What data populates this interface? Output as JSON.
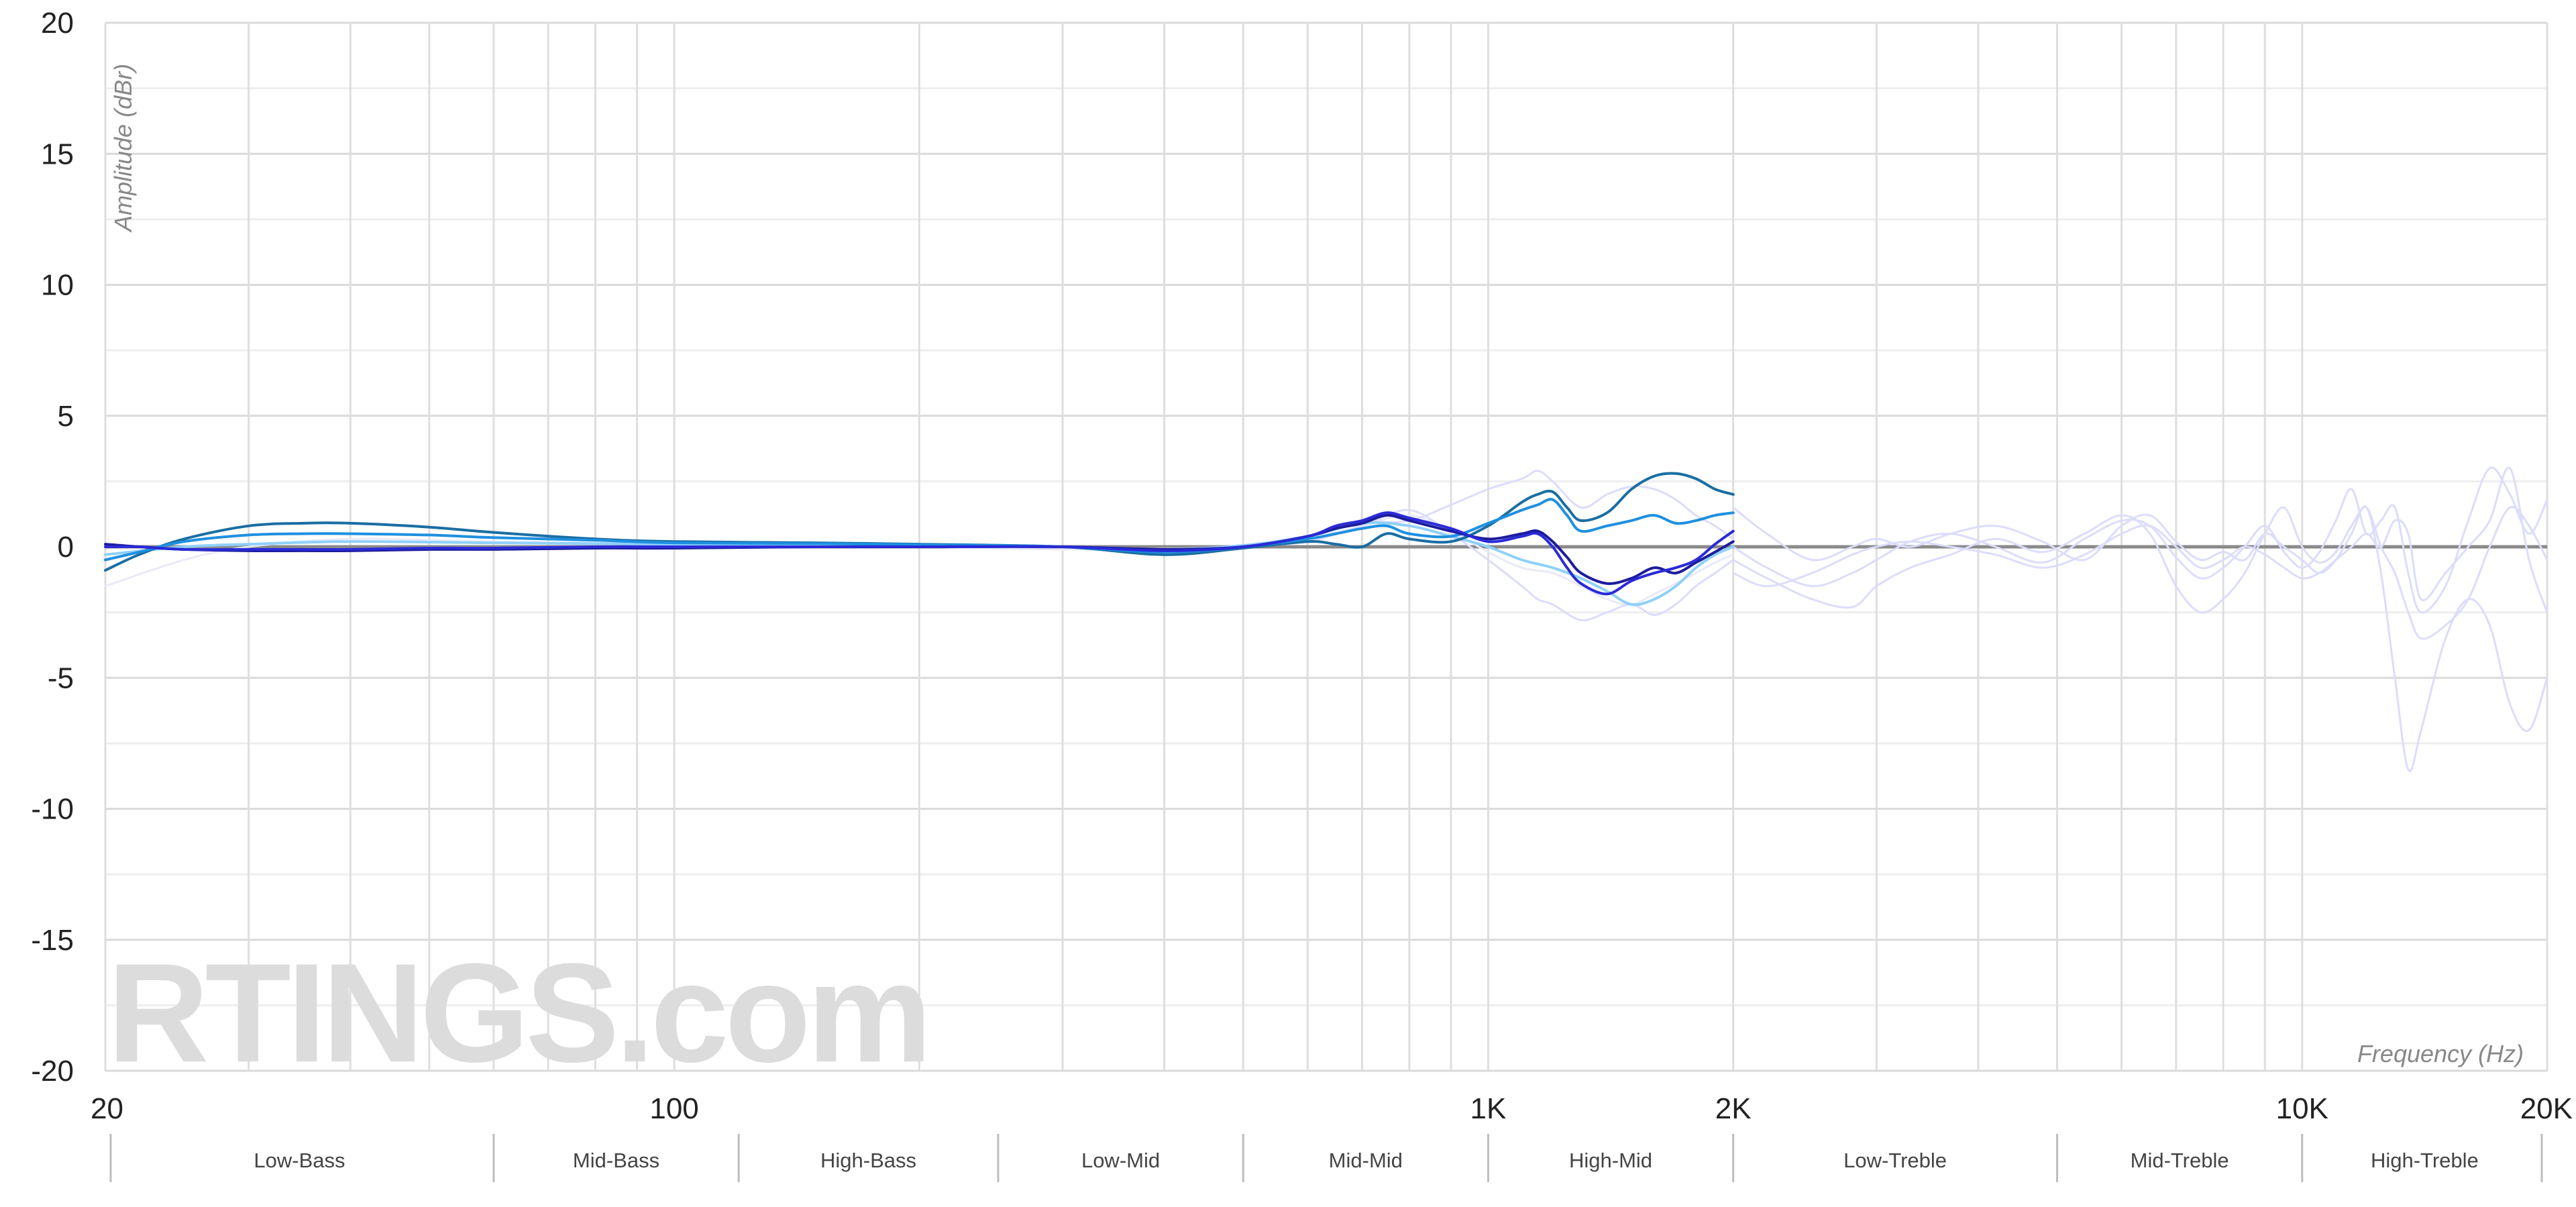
{
  "watermark": "RTINGS.com",
  "chart_data": {
    "type": "line",
    "xscale": "log",
    "xlim": [
      20,
      20000
    ],
    "ylim": [
      -20,
      20
    ],
    "ylabel": "Amplitude (dBr)",
    "xlabel": "Frequency (Hz)",
    "y_ticks": [
      20,
      15,
      10,
      5,
      0,
      -5,
      -10,
      -15,
      -20
    ],
    "x_tick_labels": [
      {
        "value": 20,
        "label": "20"
      },
      {
        "value": 100,
        "label": "100"
      },
      {
        "value": 1000,
        "label": "1K"
      },
      {
        "value": 2000,
        "label": "2K"
      },
      {
        "value": 10000,
        "label": "10K"
      },
      {
        "value": 20000,
        "label": "20K"
      }
    ],
    "grid": true,
    "zero_line_color": "#8a8a8a",
    "bands": [
      {
        "label": "Low-Bass",
        "from": 20,
        "to": 60
      },
      {
        "label": "Mid-Bass",
        "from": 60,
        "to": 120
      },
      {
        "label": "High-Bass",
        "from": 120,
        "to": 250
      },
      {
        "label": "Low-Mid",
        "from": 250,
        "to": 500
      },
      {
        "label": "Mid-Mid",
        "from": 500,
        "to": 1000
      },
      {
        "label": "High-Mid",
        "from": 1000,
        "to": 2000
      },
      {
        "label": "Low-Treble",
        "from": 2000,
        "to": 5000
      },
      {
        "label": "Mid-Treble",
        "from": 5000,
        "to": 10000
      },
      {
        "label": "High-Treble",
        "from": 10000,
        "to": 20000
      }
    ],
    "series": [
      {
        "color": "#dcdcfb",
        "width": 3,
        "x": [
          2000,
          2200,
          2500,
          2800,
          3000,
          3300,
          3700,
          4200,
          4800,
          5400,
          6000,
          6500,
          7000,
          7500,
          8000,
          8500,
          9000,
          9500,
          10000,
          10500,
          11000,
          11500,
          12000,
          12500,
          13000,
          13500,
          14000,
          15000,
          16000,
          17000,
          18000,
          19000,
          20000
        ],
        "y": [
          0,
          -0.8,
          -1.5,
          -1,
          -0.5,
          0.2,
          0.5,
          0,
          -0.6,
          0.3,
          1,
          0.8,
          -0.4,
          -1.2,
          -0.8,
          0,
          0.8,
          -0.2,
          -0.8,
          -0.2,
          1,
          2.2,
          0.5,
          1,
          1.5,
          -1,
          -2.5,
          -1.5,
          1,
          3,
          2,
          0.5,
          1.8
        ]
      },
      {
        "color": "#dcdcfb",
        "width": 3,
        "x": [
          2000,
          2200,
          2500,
          2800,
          3000,
          3300,
          3700,
          4200,
          4800,
          5400,
          6000,
          6500,
          7000,
          7500,
          8000,
          8500,
          9000,
          9500,
          10000,
          10500,
          11000,
          11500,
          12000,
          12500,
          13000,
          13500,
          14000,
          15000,
          16000,
          17000,
          18000,
          19000,
          20000
        ],
        "y": [
          -0.5,
          -1.2,
          -2,
          -2.3,
          -1.5,
          -0.8,
          -0.3,
          0.3,
          -0.2,
          0.5,
          1.2,
          0.5,
          -1.5,
          -2.5,
          -2,
          -1,
          0.5,
          1.5,
          0,
          -0.6,
          -0.2,
          0.8,
          1.5,
          0,
          -1,
          -2.5,
          -3.5,
          -3,
          -2,
          0,
          1.5,
          0.8,
          -0.5
        ]
      },
      {
        "color": "#dcdcfb",
        "width": 3,
        "x": [
          2000,
          2200,
          2500,
          2800,
          3000,
          3300,
          3700,
          4200,
          4800,
          5400,
          6000,
          6500,
          7000,
          7500,
          8000,
          8500,
          9000,
          9500,
          10000,
          10500,
          11000,
          11500,
          12000,
          12500,
          13000,
          13500,
          14000,
          15000,
          16000,
          17000,
          18000,
          19000,
          20000
        ],
        "y": [
          1.5,
          0.5,
          -0.5,
          0,
          0.3,
          0,
          0.5,
          0.8,
          0.2,
          -0.5,
          0.8,
          1.2,
          0.2,
          -0.5,
          -0.2,
          -0.5,
          0.5,
          0,
          -0.5,
          -1,
          -0.5,
          0.5,
          1.5,
          -1,
          -5,
          -8.5,
          -7,
          -3.5,
          -2,
          -3,
          -6,
          -7,
          -5
        ]
      },
      {
        "color": "#dcdcfb",
        "width": 3,
        "x": [
          2000,
          2200,
          2500,
          2800,
          3000,
          3300,
          3700,
          4200,
          4800,
          5400,
          6000,
          6500,
          7000,
          7500,
          8000,
          8500,
          9000,
          9500,
          10000,
          10500,
          11000,
          11500,
          12000,
          12500,
          13000,
          13500,
          14000,
          15000,
          16000,
          17000,
          18000,
          19000,
          20000
        ],
        "y": [
          -1,
          -1.5,
          -1,
          -0.3,
          0,
          0.2,
          0,
          -0.3,
          -0.8,
          -0.3,
          0.5,
          0.8,
          0,
          -0.8,
          -0.5,
          0,
          -0.3,
          -0.8,
          -1.2,
          -1,
          -0.5,
          0,
          0.5,
          0,
          1,
          0.5,
          -2,
          -1,
          0,
          1,
          3,
          -0.5,
          -2.5
        ]
      },
      {
        "color": "#e9e9f8",
        "width": 3,
        "x": [
          20,
          25,
          30,
          40,
          60,
          100,
          200,
          300,
          500,
          600,
          700,
          800,
          900,
          1000,
          1100,
          1200,
          1300,
          1400,
          1500,
          1600,
          1700,
          1800,
          1900,
          2000
        ],
        "y": [
          -1.5,
          -0.5,
          0,
          0.3,
          0.2,
          0.1,
          0,
          -0.1,
          0,
          0.3,
          0.8,
          1.2,
          0.6,
          -0.2,
          -0.8,
          -1,
          -1.5,
          -2,
          -2.2,
          -1.8,
          -1.4,
          -1,
          -0.6,
          -0.3
        ]
      },
      {
        "color": "#dcdcfb",
        "width": 3,
        "x": [
          500,
          600,
          700,
          800,
          900,
          1000,
          1100,
          1150,
          1200,
          1300,
          1400,
          1500,
          1600,
          1700,
          1800,
          1900,
          2000
        ],
        "y": [
          0,
          0.2,
          0.8,
          1.4,
          0.5,
          -0.5,
          -1.5,
          -2,
          -2.2,
          -2.8,
          -2.5,
          -2.2,
          -2.6,
          -2.2,
          -1.5,
          -1,
          -0.5
        ]
      },
      {
        "color": "#dcdcfb",
        "width": 3,
        "x": [
          500,
          600,
          700,
          800,
          900,
          1000,
          1100,
          1150,
          1200,
          1300,
          1400,
          1500,
          1600,
          1700,
          1800,
          1900,
          2000
        ],
        "y": [
          0,
          0.4,
          0.9,
          1,
          1.6,
          2.2,
          2.6,
          2.9,
          2.5,
          1.5,
          2,
          2.3,
          2.2,
          1.8,
          1.2,
          0.8,
          0.3
        ]
      },
      {
        "color": "#8fd0fa",
        "width": 4,
        "x": [
          20,
          25,
          30,
          40,
          60,
          100,
          200,
          300,
          400,
          500,
          600,
          700,
          800,
          900,
          1000,
          1100,
          1200,
          1300,
          1400,
          1500,
          1600,
          1700,
          1800,
          1900,
          2000
        ],
        "y": [
          -0.3,
          0,
          0.1,
          0.2,
          0.15,
          0.1,
          0.05,
          0,
          -0.1,
          0.05,
          0.4,
          0.9,
          0.8,
          0.4,
          0,
          -0.5,
          -0.8,
          -1.2,
          -1.7,
          -2.2,
          -2,
          -1.5,
          -0.8,
          -0.3,
          0
        ]
      },
      {
        "color": "#1a6ea3",
        "width": 4,
        "x": [
          20,
          22,
          25,
          30,
          35,
          40,
          50,
          60,
          80,
          100,
          150,
          200,
          300,
          400,
          500,
          600,
          650,
          700,
          750,
          800,
          900,
          1000,
          1100,
          1150,
          1200,
          1250,
          1300,
          1400,
          1500,
          1600,
          1700,
          1800,
          1900,
          2000
        ],
        "y": [
          -0.9,
          -0.3,
          0.3,
          0.8,
          0.9,
          0.9,
          0.75,
          0.55,
          0.3,
          0.2,
          0.15,
          0.1,
          0,
          -0.3,
          -0.05,
          0.2,
          0.1,
          0,
          0.5,
          0.3,
          0.2,
          0.8,
          1.7,
          2,
          2.1,
          1.5,
          1,
          1.3,
          2.2,
          2.7,
          2.8,
          2.6,
          2.2,
          2
        ]
      },
      {
        "color": "#1e90e0",
        "width": 4,
        "x": [
          20,
          22,
          25,
          30,
          35,
          40,
          50,
          60,
          80,
          100,
          150,
          200,
          300,
          400,
          500,
          600,
          650,
          700,
          750,
          800,
          900,
          1000,
          1100,
          1150,
          1200,
          1250,
          1300,
          1400,
          1500,
          1600,
          1700,
          1800,
          1900,
          2000
        ],
        "y": [
          -0.5,
          -0.2,
          0.2,
          0.45,
          0.5,
          0.5,
          0.45,
          0.35,
          0.25,
          0.15,
          0.12,
          0.08,
          0,
          -0.2,
          0,
          0.3,
          0.5,
          0.7,
          0.8,
          0.5,
          0.4,
          0.9,
          1.4,
          1.6,
          1.8,
          1.2,
          0.6,
          0.8,
          1,
          1.2,
          0.9,
          1,
          1.2,
          1.3
        ]
      },
      {
        "color": "#1c1c9c",
        "width": 4,
        "x": [
          20,
          22,
          25,
          30,
          35,
          40,
          50,
          60,
          80,
          100,
          150,
          200,
          300,
          400,
          500,
          600,
          650,
          700,
          750,
          800,
          900,
          1000,
          1100,
          1150,
          1200,
          1250,
          1300,
          1400,
          1500,
          1600,
          1700,
          1800,
          1900,
          2000
        ],
        "y": [
          0.1,
          0,
          -0.1,
          -0.15,
          -0.15,
          -0.15,
          -0.1,
          -0.1,
          -0.05,
          -0.05,
          0,
          0,
          0,
          -0.1,
          0,
          0.4,
          0.7,
          0.9,
          1.2,
          1,
          0.6,
          0.3,
          0.5,
          0.6,
          0.2,
          -0.4,
          -1,
          -1.4,
          -1.2,
          -0.8,
          -1,
          -0.6,
          -0.2,
          0.2
        ]
      },
      {
        "color": "#2a2ad8",
        "width": 4,
        "x": [
          20,
          22,
          25,
          30,
          35,
          40,
          50,
          60,
          80,
          100,
          150,
          200,
          300,
          400,
          500,
          600,
          650,
          700,
          750,
          800,
          900,
          1000,
          1100,
          1150,
          1200,
          1250,
          1300,
          1400,
          1500,
          1600,
          1700,
          1800,
          1900,
          2000
        ],
        "y": [
          0,
          0,
          -0.1,
          -0.1,
          -0.1,
          -0.1,
          -0.05,
          -0.05,
          0,
          0,
          0,
          0,
          0,
          -0.15,
          0,
          0.4,
          0.8,
          1,
          1.3,
          1.1,
          0.7,
          0.2,
          0.4,
          0.5,
          0,
          -0.8,
          -1.4,
          -1.8,
          -1.3,
          -1,
          -0.8,
          -0.5,
          0.1,
          0.6
        ]
      }
    ]
  }
}
